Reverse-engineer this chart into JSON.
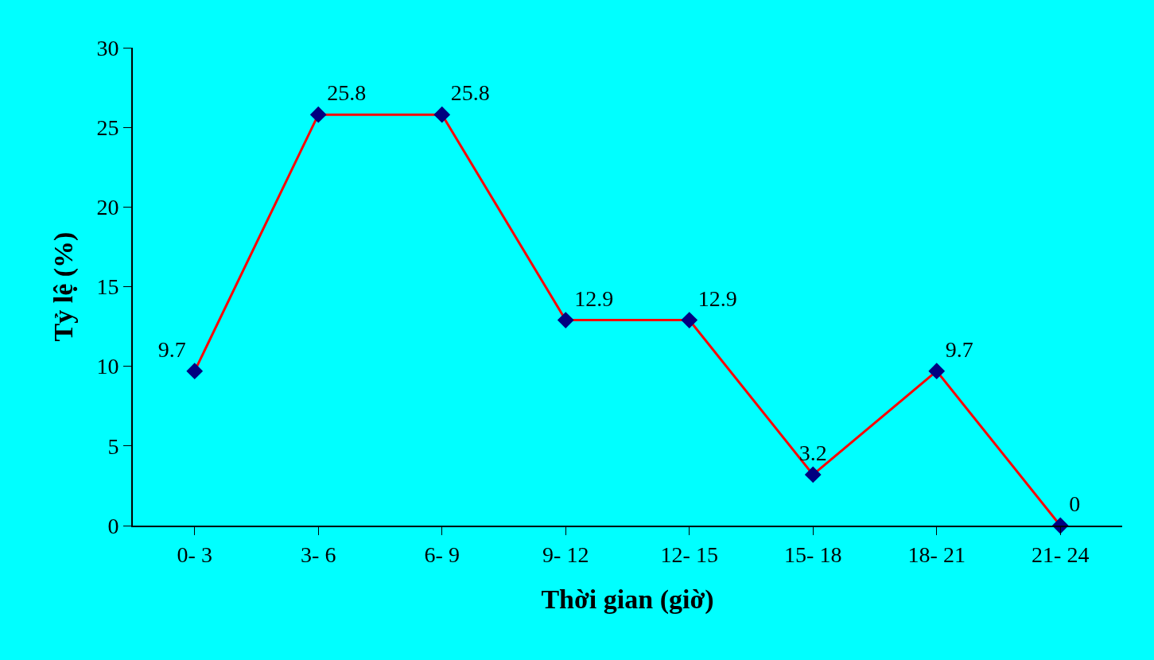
{
  "chart_data": {
    "type": "line",
    "xlabel": "Thời gian (giờ)",
    "ylabel": "Tỷ lệ (%)",
    "categories": [
      "0- 3",
      "3- 6",
      "6- 9",
      "9- 12",
      "12- 15",
      "15- 18",
      "18- 21",
      "21- 24"
    ],
    "series": [
      {
        "color": "#ff0000",
        "values": [
          9.7,
          25.8,
          25.8,
          12.9,
          12.9,
          3.2,
          9.7,
          0
        ]
      }
    ],
    "ylim": [
      0,
      30
    ],
    "yticks": [
      0,
      5,
      10,
      15,
      20,
      25,
      30
    ],
    "data_labels": true,
    "marker": "diamond",
    "line_style": "solid",
    "grid": false
  }
}
